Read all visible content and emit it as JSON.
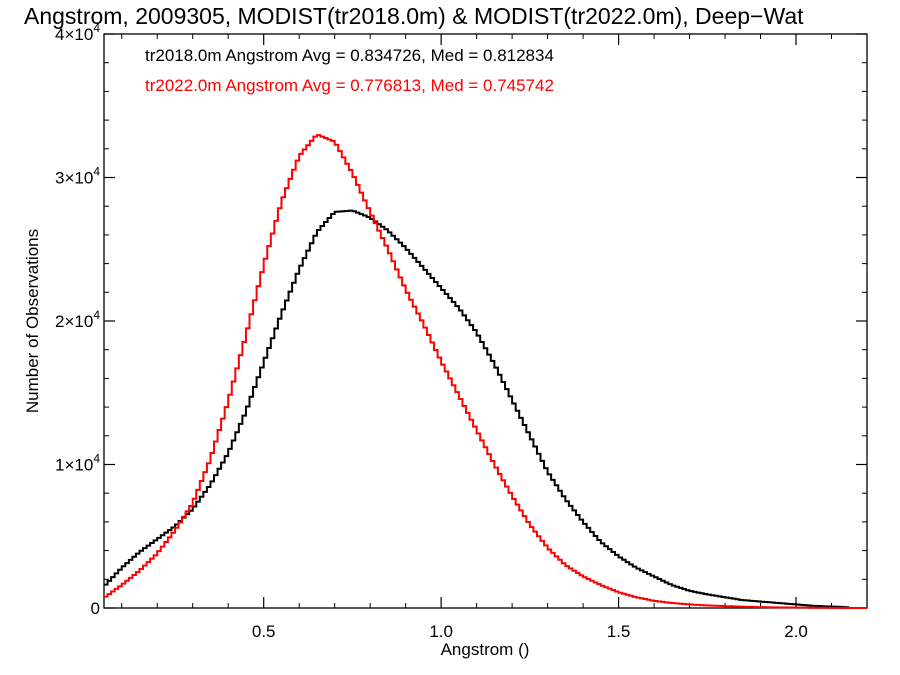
{
  "chart_data": {
    "type": "line",
    "title": "Angstrom, 2009305, MODIST(tr2018.0m) & MODIST(tr2022.0m), Deep−Wat",
    "xlabel": "Angstrom ()",
    "ylabel": "Number of Observations",
    "xlim": [
      0.05,
      2.2
    ],
    "ylim": [
      0,
      40000
    ],
    "x_ticks": [
      {
        "value": 0.5,
        "label": "0.5"
      },
      {
        "value": 1.0,
        "label": "1.0"
      },
      {
        "value": 1.5,
        "label": "1.5"
      },
      {
        "value": 2.0,
        "label": "2.0"
      }
    ],
    "y_ticks": [
      {
        "value": 0,
        "label": "0",
        "mantissa": "",
        "exponent": ""
      },
      {
        "value": 10000,
        "label": "",
        "mantissa": "1×10",
        "exponent": "4"
      },
      {
        "value": 20000,
        "label": "",
        "mantissa": "2×10",
        "exponent": "4"
      },
      {
        "value": 30000,
        "label": "",
        "mantissa": "3×10",
        "exponent": "4"
      },
      {
        "value": 40000,
        "label": "",
        "mantissa": "4×10",
        "exponent": "4"
      }
    ],
    "grid": false,
    "annotations": [
      {
        "text": "tr2018.0m Angstrom Avg = 0.834726, Med = 0.812834",
        "color": "#000000"
      },
      {
        "text": "tr2022.0m Angstrom Avg = 0.776813, Med = 0.745742",
        "color": "#ff0000"
      }
    ],
    "series": [
      {
        "color": "#000000",
        "x": [
          0.05,
          0.1,
          0.15,
          0.2,
          0.25,
          0.3,
          0.35,
          0.4,
          0.45,
          0.5,
          0.55,
          0.6,
          0.65,
          0.7,
          0.75,
          0.8,
          0.85,
          0.9,
          0.95,
          1.0,
          1.05,
          1.1,
          1.15,
          1.2,
          1.25,
          1.3,
          1.35,
          1.4,
          1.45,
          1.5,
          1.55,
          1.6,
          1.65,
          1.7,
          1.75,
          1.8,
          1.85,
          1.9,
          1.95,
          2.0,
          2.05,
          2.1,
          2.15
        ],
        "y": [
          1500,
          2800,
          3900,
          4800,
          5700,
          6900,
          8600,
          10800,
          13700,
          17100,
          20500,
          23600,
          26200,
          27600,
          27700,
          27200,
          26300,
          25100,
          23700,
          22300,
          20900,
          19200,
          17000,
          14500,
          12000,
          9500,
          7600,
          6000,
          4600,
          3600,
          2800,
          2200,
          1600,
          1200,
          950,
          750,
          550,
          450,
          350,
          250,
          150,
          100,
          50
        ]
      },
      {
        "color": "#ff0000",
        "x": [
          0.05,
          0.1,
          0.15,
          0.2,
          0.25,
          0.3,
          0.35,
          0.4,
          0.45,
          0.5,
          0.55,
          0.6,
          0.65,
          0.7,
          0.75,
          0.8,
          0.85,
          0.9,
          0.95,
          1.0,
          1.05,
          1.1,
          1.15,
          1.2,
          1.25,
          1.3,
          1.35,
          1.4,
          1.45,
          1.5,
          1.55,
          1.6,
          1.65,
          1.7,
          1.75,
          1.8,
          1.85,
          1.9,
          1.95,
          2.0,
          2.05,
          2.1,
          2.15,
          2.2
        ],
        "y": [
          700,
          1600,
          2600,
          3800,
          5400,
          7300,
          10400,
          14400,
          19000,
          23900,
          28300,
          31500,
          33000,
          32500,
          30300,
          27600,
          25000,
          22200,
          19800,
          17200,
          14800,
          12400,
          10000,
          7800,
          5800,
          4200,
          3000,
          2200,
          1600,
          1100,
          750,
          500,
          350,
          250,
          180,
          130,
          90,
          60,
          40,
          30,
          20,
          10,
          0,
          0
        ]
      }
    ]
  }
}
